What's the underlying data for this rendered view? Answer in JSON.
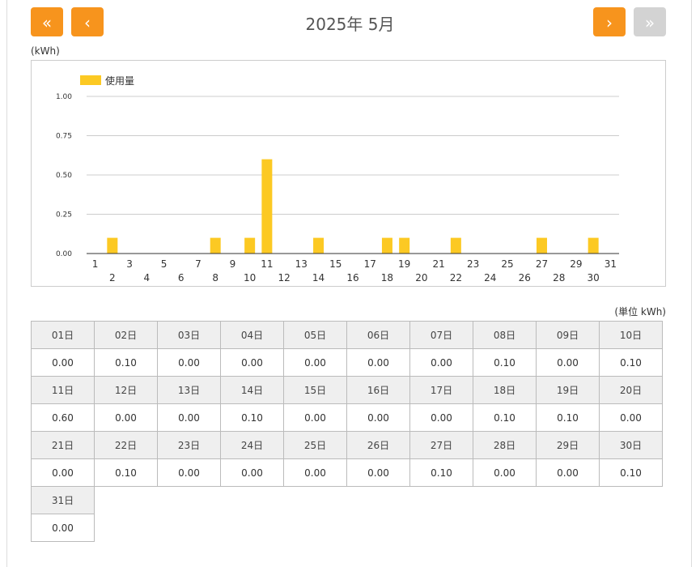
{
  "header": {
    "first_label": "«",
    "prev_label": "‹",
    "next_label": "›",
    "last_label": "»",
    "title": "2025年 5月",
    "unit_top": "(kWh)",
    "unit_table": "(単位 kWh)"
  },
  "colors": {
    "accent": "#f7941d",
    "disabled": "#d3d3d3",
    "bar": "#fcc923"
  },
  "chart_data": {
    "type": "bar",
    "categories": [
      "1",
      "2",
      "3",
      "4",
      "5",
      "6",
      "7",
      "8",
      "9",
      "10",
      "11",
      "12",
      "13",
      "14",
      "15",
      "16",
      "17",
      "18",
      "19",
      "20",
      "21",
      "22",
      "23",
      "24",
      "25",
      "26",
      "27",
      "28",
      "29",
      "30",
      "31"
    ],
    "series": [
      {
        "name": "使用量",
        "values": [
          0,
          0.1,
          0,
          0,
          0,
          0,
          0,
          0.1,
          0,
          0.1,
          0.6,
          0,
          0,
          0.1,
          0,
          0,
          0,
          0.1,
          0.1,
          0,
          0,
          0.1,
          0,
          0,
          0,
          0,
          0.1,
          0,
          0,
          0.1,
          0
        ]
      }
    ],
    "ylim": [
      0,
      1
    ],
    "yticks": [
      "0.00",
      "0.25",
      "0.50",
      "0.75",
      "1.00"
    ],
    "ylabel": "(kWh)",
    "grid": true,
    "legend": "top-left"
  },
  "table": {
    "rows": [
      {
        "headers": [
          "01日",
          "02日",
          "03日",
          "04日",
          "05日",
          "06日",
          "07日",
          "08日",
          "09日",
          "10日"
        ],
        "values": [
          "0.00",
          "0.10",
          "0.00",
          "0.00",
          "0.00",
          "0.00",
          "0.00",
          "0.10",
          "0.00",
          "0.10"
        ]
      },
      {
        "headers": [
          "11日",
          "12日",
          "13日",
          "14日",
          "15日",
          "16日",
          "17日",
          "18日",
          "19日",
          "20日"
        ],
        "values": [
          "0.60",
          "0.00",
          "0.00",
          "0.10",
          "0.00",
          "0.00",
          "0.00",
          "0.10",
          "0.10",
          "0.00"
        ]
      },
      {
        "headers": [
          "21日",
          "22日",
          "23日",
          "24日",
          "25日",
          "26日",
          "27日",
          "28日",
          "29日",
          "30日"
        ],
        "values": [
          "0.00",
          "0.10",
          "0.00",
          "0.00",
          "0.00",
          "0.00",
          "0.10",
          "0.00",
          "0.00",
          "0.10"
        ]
      },
      {
        "headers": [
          "31日"
        ],
        "values": [
          "0.00"
        ]
      }
    ]
  }
}
